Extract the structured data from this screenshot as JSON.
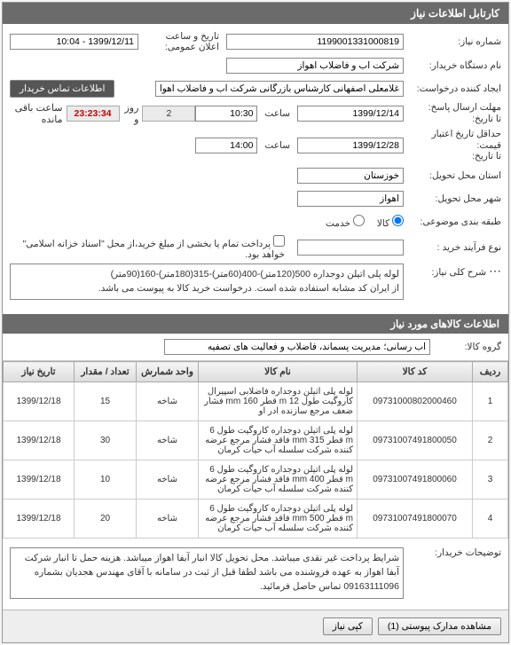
{
  "panel1": {
    "title": "کارتابل اطلاعات نیاز",
    "need_number_label": "شماره نیاز:",
    "need_number": "1199001331000819",
    "announce_label": "تاریخ و ساعت اعلان عمومی:",
    "announce_value": "1399/12/11 - 10:04",
    "buyer_org_label": "نام دستگاه خریدار:",
    "buyer_org": "شرکت آب و فاضلاب اهواز",
    "creator_label": "ایجاد کننده درخواست:",
    "creator": "غلامعلی اصفهانی کارشناس بازرگانی شرکت آب و فاضلاب اهواز",
    "contact_btn": "اطلاعات تماس خریدار",
    "deadline_reply_label": "مهلت ارسال پاسخ:",
    "until_label": "تا تاریخ:",
    "deadline_date": "1399/12/14",
    "time_label": "ساعت",
    "deadline_time": "10:30",
    "days_remaining": "2",
    "days_and": "روز و",
    "countdown": "23:23:34",
    "hours_remaining": "ساعت باقی مانده",
    "min_valid_label": "حداقل تاریخ اعتبار قیمت:",
    "valid_date": "1399/12/28",
    "valid_time": "14:00",
    "delivery_province_label": "استان محل تحویل:",
    "delivery_province": "خوزستان",
    "delivery_city_label": "شهر محل تحویل:",
    "delivery_city": "اهواز",
    "category_label": "طبقه بندی موضوعی:",
    "goods_radio": "کالا",
    "service_radio": "خدمت",
    "purchase_type_label": "نوع فرآیند خرید :",
    "payment_checkbox": "پرداخت تمام یا بخشی از مبلغ خرید،از محل \"اسناد خزانه اسلامی\" خواهد بود.",
    "summary_label": "شرح کلی نیاز:",
    "summary_text": "لوله پلی اتیلن دوجداره 500(120متر)-400(60متر)-315(180متر)-160(90متر)\nاز ایران کد مشابه استفاده شده است. درخواست خرید کالا به پیوست می باشد.",
    "dots_icon": "⋯"
  },
  "items_section": {
    "header": "اطلاعات کالاهای مورد نیاز",
    "group_label": "گروه کالا:",
    "group_value": "آب رسانی؛ مدیریت پسماند، فاضلاب و فعالیت های تصفیه",
    "columns": [
      "ردیف",
      "کد کالا",
      "نام کالا",
      "واحد شمارش",
      "تعداد / مقدار",
      "تاریخ نیاز"
    ],
    "rows": [
      {
        "n": "1",
        "code": "09731000802000460",
        "name": "لوله پلی اتیلن دوجداره فاضلابی اسپیرال کاروگیت طول 12 m قطر 160 mm فشار ضعف مرجع سازنده ادر او",
        "unit": "شاخه",
        "qty": "15",
        "date": "1399/12/18"
      },
      {
        "n": "2",
        "code": "09731007491800050",
        "name": "لوله پلی اتیلن دوجداره کاروگیت طول 6 m قطر 315 mm فاقد فشار مرجع عرضه کننده شرکت سلسله آب حیات کرمان",
        "unit": "شاخه",
        "qty": "30",
        "date": "1399/12/18"
      },
      {
        "n": "3",
        "code": "09731007491800060",
        "name": "لوله پلی اتیلن دوجداره کاروگیت طول 6 m قطر 400 mm فاقد فشار مرجع عرضه کننده شرکت سلسله آب حیات کرمان",
        "unit": "شاخه",
        "qty": "10",
        "date": "1399/12/18"
      },
      {
        "n": "4",
        "code": "09731007491800070",
        "name": "لوله پلی اتیلن دوجداره کاروگیت طول 6 m قطر 500 mm فاقد فشار مرجع عرضه کننده شرکت سلسله آب حیات کرمان",
        "unit": "شاخه",
        "qty": "20",
        "date": "1399/12/18"
      }
    ]
  },
  "buyer_notes": {
    "label": "توضیحات خریدار:",
    "text": "شرایط پرداخت غیر نقدی میباشد. محل تحویل کالا انبار آبفا اهواز میباشد. هزینه حمل تا  انبار شرکت آبفا اهواز به عهده فروشنده می باشد لطفا قبل از ثبت در سامانه با آقای مهندس هجدیان بشماره 09163111096 تماس حاصل فرمائید."
  },
  "footer": {
    "attachments_btn": "مشاهده مدارک پیوستی (1)",
    "copy_btn": "کپی نیاز"
  },
  "colors": {
    "header_bg": "#6b6b6b",
    "countdown": "#c00"
  }
}
